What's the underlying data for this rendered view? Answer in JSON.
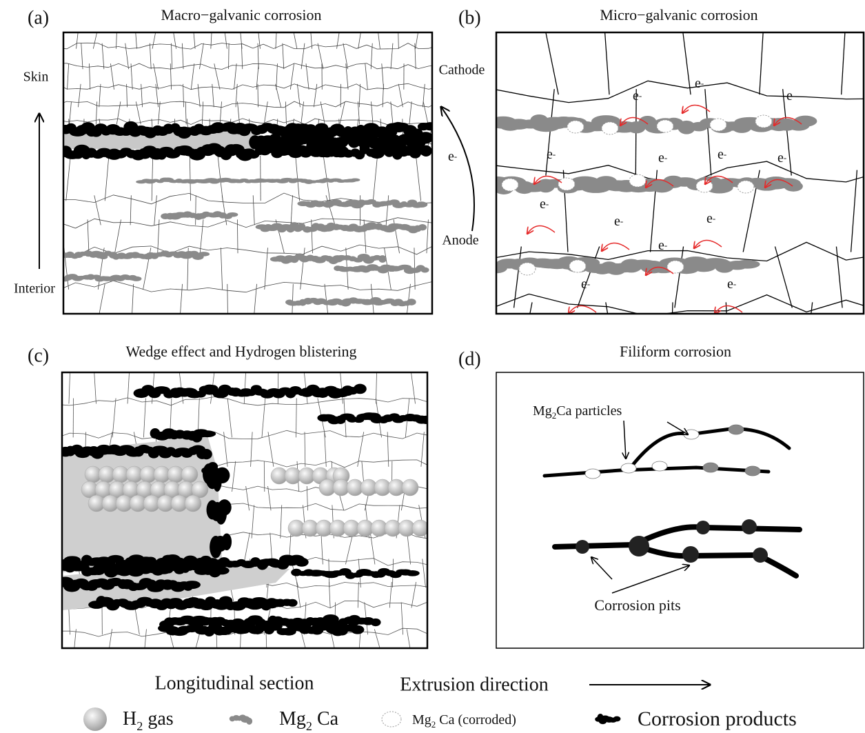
{
  "panels": [
    {
      "label": "(a)",
      "title": "Macro−galvanic corrosion",
      "skin": "Skin",
      "interior": "Interior",
      "cathode": "Cathode",
      "anode": "Anode",
      "electron": {
        "text": "e",
        "sup": "-"
      }
    },
    {
      "label": "(b)",
      "title": "Micro−galvanic corrosion",
      "electrons": [
        {
          "text": "e",
          "sup": "-"
        },
        {
          "text": "e",
          "sup": "-"
        },
        {
          "text": "e",
          "sup": "-"
        },
        {
          "text": "e",
          "sup": "-"
        },
        {
          "text": "e",
          "sup": "-"
        },
        {
          "text": "e",
          "sup": "-"
        },
        {
          "text": "e",
          "sup": "-"
        },
        {
          "text": "e",
          "sup": "-"
        },
        {
          "text": "e",
          "sup": "-"
        },
        {
          "text": "e",
          "sup": "-"
        },
        {
          "text": "e",
          "sup": "-"
        },
        {
          "text": "e",
          "sup": "-"
        },
        {
          "text": "e",
          "sup": "-"
        }
      ]
    },
    {
      "label": "(c)",
      "title": "Wedge effect and Hydrogen blistering"
    },
    {
      "label": "(d)",
      "title": "Filiform corrosion",
      "particles": [
        {
          "text": "Mg"
        },
        {
          "sub": "2"
        },
        {
          "text": "Ca particles"
        }
      ],
      "pits": "Corrosion pits"
    }
  ],
  "footer": {
    "section": "Longitudinal section",
    "direction": "Extrusion direction"
  },
  "legend": [
    {
      "label": [
        {
          "text": "H"
        },
        {
          "sub": "2"
        },
        {
          "text": "  gas"
        }
      ]
    },
    {
      "label": [
        {
          "text": "Mg"
        },
        {
          "sub": "2"
        },
        {
          "text": " Ca"
        }
      ]
    },
    {
      "label": [
        {
          "text": "Mg"
        },
        {
          "sub": "2"
        },
        {
          "text": " Ca (corroded)"
        }
      ]
    },
    {
      "label": [
        {
          "text": "Corrosion products"
        }
      ]
    }
  ]
}
